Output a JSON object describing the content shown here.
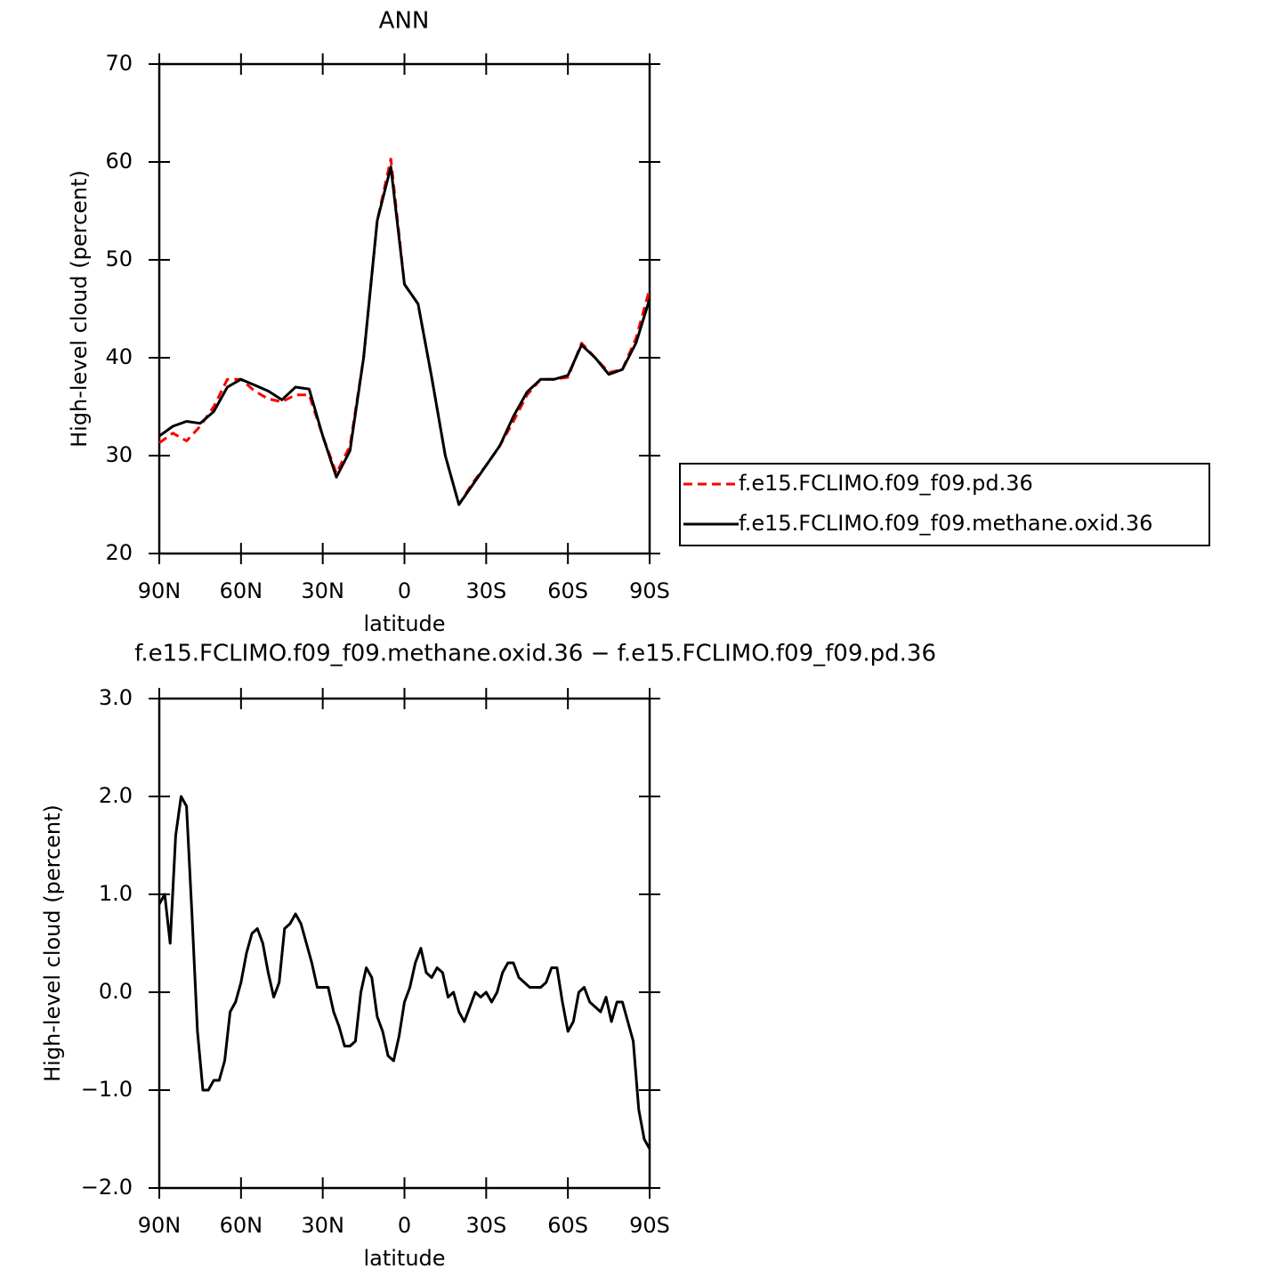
{
  "chart_data": [
    {
      "type": "line",
      "title": "ANN",
      "xlabel": "latitude",
      "ylabel": "High-level cloud (percent)",
      "xlim": [
        90,
        -90
      ],
      "ylim": [
        20,
        70
      ],
      "xticks": [
        {
          "value": 90,
          "label": "90N"
        },
        {
          "value": 60,
          "label": "60N"
        },
        {
          "value": 30,
          "label": "30N"
        },
        0,
        {
          "value": -30,
          "label": "30S"
        },
        {
          "value": -60,
          "label": "60S"
        },
        {
          "value": -90,
          "label": "90S"
        }
      ],
      "yticks": [
        20,
        30,
        40,
        50,
        60,
        70
      ],
      "legend": "right",
      "x": [
        90,
        85,
        80,
        75,
        70,
        65,
        60,
        55,
        50,
        45,
        40,
        35,
        30,
        25,
        20,
        15,
        10,
        5,
        0,
        -5,
        -10,
        -15,
        -20,
        -25,
        -30,
        -35,
        -40,
        -45,
        -50,
        -55,
        -60,
        -65,
        -70,
        -75,
        -80,
        -85,
        -90
      ],
      "series": [
        {
          "name": "f.e15.FCLIMO.f09_f09.pd.36",
          "color": "#ff0000",
          "linestyle": "dashed",
          "values": [
            31.3,
            32.3,
            31.5,
            33.0,
            35.0,
            37.8,
            37.8,
            36.6,
            35.8,
            35.5,
            36.2,
            36.2,
            32.0,
            28.2,
            31.0,
            40.0,
            54.0,
            60.3,
            47.5,
            45.5,
            38.0,
            30.0,
            25.0,
            27.2,
            29.0,
            31.0,
            33.5,
            36.2,
            37.8,
            37.8,
            38.0,
            41.5,
            40.0,
            38.5,
            38.8,
            42.0,
            47.0
          ]
        },
        {
          "name": "f.e15.FCLIMO.f09_f09.methane.oxid.36",
          "color": "#000000",
          "linestyle": "solid",
          "values": [
            32.0,
            33.0,
            33.5,
            33.3,
            34.5,
            37.0,
            37.8,
            37.2,
            36.6,
            35.7,
            37.0,
            36.8,
            32.0,
            27.8,
            30.5,
            40.0,
            54.0,
            59.5,
            47.5,
            45.5,
            38.0,
            30.0,
            25.0,
            27.0,
            29.0,
            31.0,
            34.0,
            36.5,
            37.8,
            37.8,
            38.2,
            41.3,
            40.0,
            38.3,
            38.8,
            41.5,
            46.0
          ]
        }
      ]
    },
    {
      "type": "line",
      "title": "f.e15.FCLIMO.f09_f09.methane.oxid.36 − f.e15.FCLIMO.f09_f09.pd.36",
      "xlabel": "latitude",
      "ylabel": "High-level cloud (percent)",
      "xlim": [
        90,
        -90
      ],
      "ylim": [
        -2,
        3
      ],
      "xticks": [
        {
          "value": 90,
          "label": "90N"
        },
        {
          "value": 60,
          "label": "60N"
        },
        {
          "value": 30,
          "label": "30N"
        },
        0,
        {
          "value": -30,
          "label": "30S"
        },
        {
          "value": -60,
          "label": "60S"
        },
        {
          "value": -90,
          "label": "90S"
        }
      ],
      "yticks": [
        {
          "value": -2,
          "label": "−2.0"
        },
        {
          "value": -1,
          "label": "−1.0"
        },
        {
          "value": 0,
          "label": "0.0"
        },
        {
          "value": 1,
          "label": "1.0"
        },
        {
          "value": 2,
          "label": "2.0"
        },
        {
          "value": 3,
          "label": "3.0"
        }
      ],
      "color": "#000000",
      "x": [
        90,
        88,
        86,
        84,
        82,
        80,
        78,
        76,
        74,
        72,
        70,
        68,
        66,
        64,
        62,
        60,
        58,
        56,
        54,
        52,
        50,
        48,
        46,
        44,
        42,
        40,
        38,
        36,
        34,
        32,
        30,
        28,
        26,
        24,
        22,
        20,
        18,
        16,
        14,
        12,
        10,
        8,
        6,
        4,
        2,
        0,
        -2,
        -4,
        -6,
        -8,
        -10,
        -12,
        -14,
        -16,
        -18,
        -20,
        -22,
        -24,
        -26,
        -28,
        -30,
        -32,
        -34,
        -36,
        -38,
        -40,
        -42,
        -44,
        -46,
        -48,
        -50,
        -52,
        -54,
        -56,
        -58,
        -60,
        -62,
        -64,
        -66,
        -68,
        -70,
        -72,
        -74,
        -76,
        -78,
        -80,
        -82,
        -84,
        -86,
        -88,
        -90
      ],
      "values": [
        0.9,
        1.0,
        0.5,
        1.6,
        2.0,
        1.9,
        0.8,
        -0.4,
        -1.0,
        -1.0,
        -0.9,
        -0.9,
        -0.7,
        -0.2,
        -0.1,
        0.1,
        0.4,
        0.6,
        0.65,
        0.5,
        0.2,
        -0.05,
        0.1,
        0.65,
        0.7,
        0.8,
        0.7,
        0.5,
        0.3,
        0.05,
        0.05,
        0.05,
        -0.2,
        -0.35,
        -0.55,
        -0.55,
        -0.5,
        0.0,
        0.25,
        0.15,
        -0.25,
        -0.4,
        -0.65,
        -0.7,
        -0.45,
        -0.1,
        0.05,
        0.3,
        0.45,
        0.2,
        0.15,
        0.25,
        0.2,
        -0.05,
        0.0,
        -0.2,
        -0.3,
        -0.15,
        0.0,
        -0.05,
        0.0,
        -0.1,
        0.0,
        0.2,
        0.3,
        0.3,
        0.15,
        0.1,
        0.05,
        0.05,
        0.05,
        0.1,
        0.25,
        0.25,
        -0.1,
        -0.4,
        -0.3,
        0.0,
        0.05,
        -0.1,
        -0.15,
        -0.2,
        -0.05,
        -0.3,
        -0.1,
        -0.1,
        -0.3,
        -0.5,
        -1.2,
        -1.5,
        -1.6
      ]
    }
  ]
}
